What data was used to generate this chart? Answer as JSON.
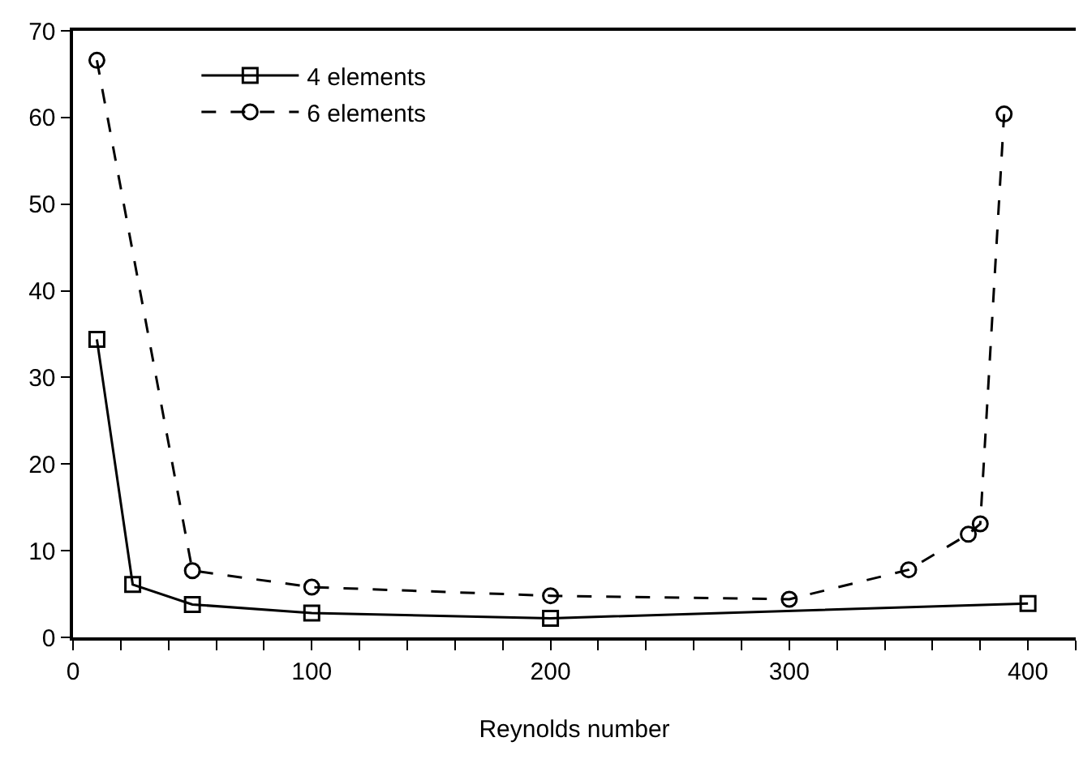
{
  "chart_data": {
    "type": "line",
    "xlabel": "Reynolds number",
    "xlim": [
      0,
      420
    ],
    "ylim": [
      0,
      70
    ],
    "xticks": [
      0,
      {
        "value": 20,
        "label": null
      },
      {
        "value": 40,
        "label": null
      },
      {
        "value": 60,
        "label": null
      },
      {
        "value": 80,
        "label": null
      },
      100,
      {
        "value": 120,
        "label": null
      },
      {
        "value": 140,
        "label": null
      },
      {
        "value": 160,
        "label": null
      },
      {
        "value": 180,
        "label": null
      },
      200,
      {
        "value": 220,
        "label": null
      },
      {
        "value": 240,
        "label": null
      },
      {
        "value": 260,
        "label": null
      },
      {
        "value": 280,
        "label": null
      },
      300,
      {
        "value": 320,
        "label": null
      },
      {
        "value": 340,
        "label": null
      },
      {
        "value": 360,
        "label": null
      },
      {
        "value": 380,
        "label": null
      },
      400,
      {
        "value": 420,
        "label": null
      }
    ],
    "yticks": [
      0,
      10,
      20,
      30,
      40,
      50,
      60,
      70
    ],
    "legend": "top left",
    "series": [
      {
        "name": "4 elements",
        "color": "#000000",
        "marker": "square",
        "line_style": "solid",
        "x": [
          10,
          25,
          50,
          100,
          200,
          400
        ],
        "values": [
          34.4,
          6.1,
          3.8,
          2.8,
          2.2,
          3.9
        ]
      },
      {
        "name": "6 elements",
        "color": "#000000",
        "marker": "circle",
        "line_style": "dashed",
        "x": [
          10,
          50,
          100,
          200,
          300,
          350,
          375,
          380,
          390
        ],
        "values": [
          66.6,
          7.7,
          5.8,
          4.8,
          4.4,
          7.8,
          11.9,
          13.1,
          60.4
        ]
      }
    ]
  }
}
